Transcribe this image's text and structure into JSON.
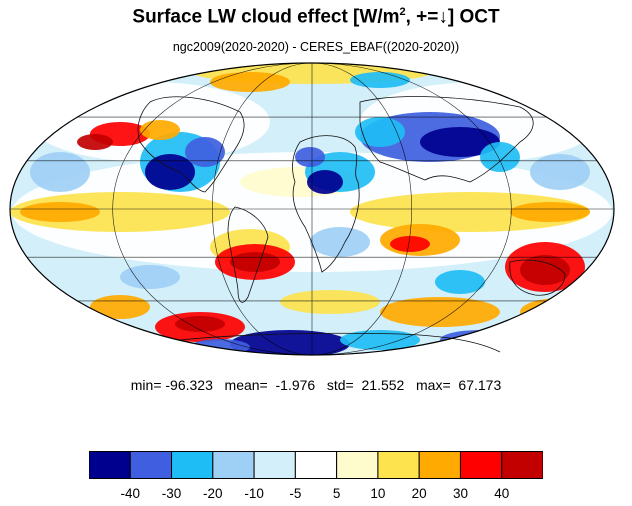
{
  "title": {
    "main": "Surface LW cloud effect [W/m",
    "sup": "2",
    "rest": ", +=↓]  OCT"
  },
  "subtitle": "ngc2009(2020-2020) - CERES_EBAF((2020-2020))",
  "stats": {
    "text": "min= -96.323   mean=  -1.976   std=  21.552   max=  67.173",
    "min": -96.323,
    "mean": -1.976,
    "std": 21.552,
    "max": 67.173
  },
  "colorbar": {
    "colors": [
      "#00008f",
      "#3f5fe0",
      "#1fbdf5",
      "#9ecff5",
      "#d2effa",
      "#ffffff",
      "#fefccc",
      "#fde34d",
      "#ffaa00",
      "#fe0000",
      "#c20000"
    ],
    "labels": [
      "-40",
      "-30",
      "-20",
      "-10",
      "-5",
      "5",
      "10",
      "20",
      "30",
      "40"
    ]
  },
  "map": {
    "projection": "mollweide"
  }
}
